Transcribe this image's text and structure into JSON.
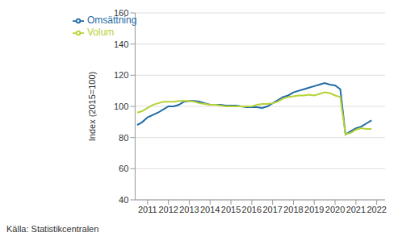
{
  "chart_data": {
    "type": "line",
    "y_label": "Index (2015=100)",
    "source": "Källa: Statistikcentralen",
    "x": [
      2010.5,
      2010.75,
      2011,
      2011.25,
      2011.5,
      2011.75,
      2012,
      2012.25,
      2012.5,
      2012.75,
      2013,
      2013.25,
      2013.5,
      2013.75,
      2014,
      2014.25,
      2014.5,
      2014.75,
      2015,
      2015.25,
      2015.5,
      2015.75,
      2016,
      2016.25,
      2016.5,
      2016.75,
      2017,
      2017.25,
      2017.5,
      2017.75,
      2018,
      2018.25,
      2018.5,
      2018.75,
      2019,
      2019.25,
      2019.5,
      2019.75,
      2020,
      2020.25,
      2020.5,
      2020.75,
      2021,
      2021.25,
      2021.5,
      2021.75
    ],
    "series": [
      {
        "name": "Omsättning",
        "color": "#1f6aa5",
        "values": [
          88,
          90,
          93,
          94.5,
          96,
          98,
          100,
          100,
          101,
          103,
          103.5,
          103.5,
          103,
          102,
          101,
          101,
          101,
          100.5,
          100.5,
          100.5,
          100,
          99.5,
          99.5,
          99.5,
          99,
          100,
          102,
          104,
          106,
          107,
          109,
          110,
          111,
          112,
          113,
          114,
          115,
          114,
          113.5,
          111,
          82,
          84,
          86,
          87,
          89,
          91
        ]
      },
      {
        "name": "Volum",
        "color": "#b5d334",
        "values": [
          96,
          97,
          99,
          101,
          102,
          103,
          103,
          103,
          103.5,
          103.5,
          103.5,
          103,
          102,
          101.5,
          101,
          101,
          100.5,
          100,
          100,
          100,
          100,
          100,
          100,
          101,
          101.5,
          101.5,
          102,
          103,
          105,
          106,
          106.5,
          107,
          107,
          107.5,
          107,
          108,
          109,
          108.5,
          107,
          106,
          82,
          83,
          85,
          86,
          85.5,
          85.5
        ]
      }
    ],
    "xlim": [
      2010.4,
      2022.4
    ],
    "xticks": [
      2011,
      2012,
      2013,
      2014,
      2015,
      2016,
      2017,
      2018,
      2019,
      2020,
      2021,
      2022
    ],
    "ylim": [
      40,
      160
    ],
    "yticks": [
      40,
      60,
      80,
      100,
      120,
      140,
      160
    ],
    "grid": true,
    "legend": "top-left"
  }
}
